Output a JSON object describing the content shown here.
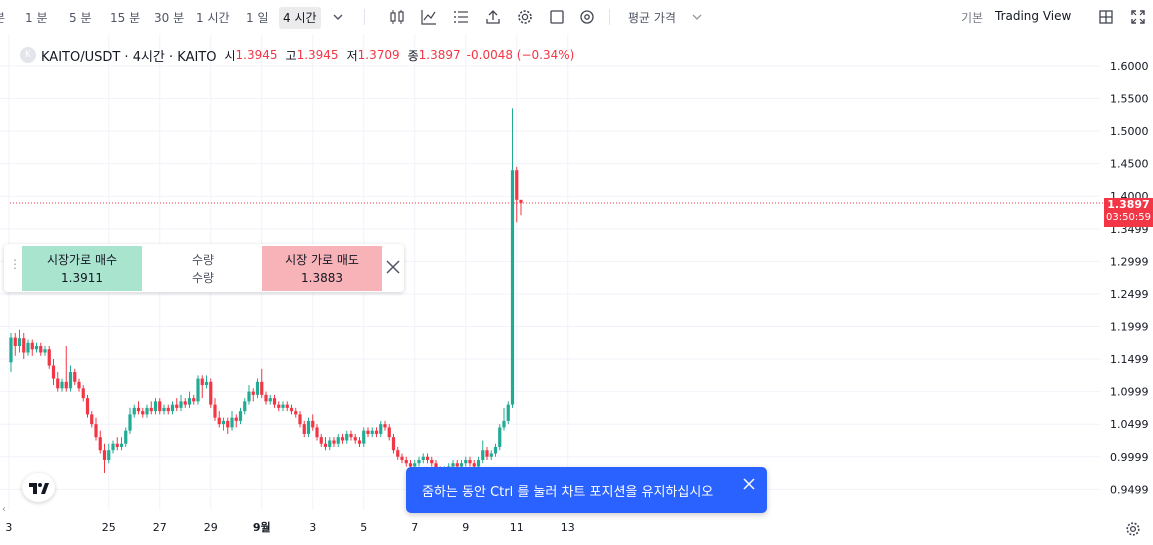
{
  "toolbar": {
    "timeframes": [
      "분",
      "1 분",
      "5 분",
      "15 분",
      "30 분",
      "1 시간",
      "1 일",
      "4 시간"
    ],
    "active_timeframe": "4 시간",
    "price_type": "평균 가격",
    "view_basic": "기본",
    "view_tradingview": "Trading View"
  },
  "legend": {
    "symbol": "KAITO/USDT · 4시간 · KAITO",
    "logo_letter": "K",
    "open_label": "시",
    "open": "1.3945",
    "high_label": "고",
    "high": "1.3945",
    "low_label": "저",
    "low": "1.3709",
    "close_label": "종",
    "close": "1.3897",
    "change": "-0.0048 (−0.34%)"
  },
  "trade_panel": {
    "buy_label": "시장가로 매수",
    "buy_price": "1.3911",
    "qty_label": "수량",
    "qty_value": "수량",
    "sell_label": "시장 가로 매도",
    "sell_price": "1.3883"
  },
  "current_price": {
    "value": "1.3897",
    "countdown": "03:50:59"
  },
  "toast": {
    "message": "줌하는 동안 Ctrl 를 눌러 차트 포지션을 유지하십시오"
  },
  "colors": {
    "up": "#22ab94",
    "down": "#f23645",
    "grid": "#f0f3fa",
    "accent": "#2962ff"
  },
  "chart_data": {
    "type": "candlestick",
    "y_ticks": [
      "1.6000",
      "1.5500",
      "1.5000",
      "1.4500",
      "1.4000",
      "1.3499",
      "1.2999",
      "1.2499",
      "1.1999",
      "1.1499",
      "1.0999",
      "1.0499",
      "0.9999",
      "0.9499"
    ],
    "y_tick_values": [
      1.6,
      1.55,
      1.5,
      1.45,
      1.4,
      1.3499,
      1.2999,
      1.2499,
      1.1999,
      1.1499,
      1.0999,
      1.0499,
      0.9999,
      0.9499
    ],
    "x_ticks": [
      "3",
      "25",
      "27",
      "29",
      "9월",
      "3",
      "5",
      "7",
      "9",
      "11",
      "13"
    ],
    "x_tick_index": [
      -0.5,
      23,
      35,
      47,
      59,
      71,
      83,
      95,
      107,
      119,
      131
    ],
    "ylim": [
      0.925,
      1.615
    ],
    "candles": [
      [
        1.145,
        1.183,
        1.19,
        1.13
      ],
      [
        1.183,
        1.17,
        1.19,
        1.155
      ],
      [
        1.17,
        1.182,
        1.195,
        1.16
      ],
      [
        1.182,
        1.16,
        1.19,
        1.15
      ],
      [
        1.16,
        1.175,
        1.18,
        1.155
      ],
      [
        1.175,
        1.165,
        1.18,
        1.155
      ],
      [
        1.165,
        1.17,
        1.175,
        1.16
      ],
      [
        1.17,
        1.16,
        1.175,
        1.155
      ],
      [
        1.16,
        1.165,
        1.17,
        1.155
      ],
      [
        1.165,
        1.14,
        1.17,
        1.135
      ],
      [
        1.14,
        1.12,
        1.15,
        1.11
      ],
      [
        1.12,
        1.105,
        1.13,
        1.1
      ],
      [
        1.105,
        1.115,
        1.12,
        1.1
      ],
      [
        1.115,
        1.105,
        1.17,
        1.1
      ],
      [
        1.105,
        1.13,
        1.14,
        1.1
      ],
      [
        1.13,
        1.115,
        1.135,
        1.11
      ],
      [
        1.115,
        1.105,
        1.12,
        1.1
      ],
      [
        1.105,
        1.09,
        1.11,
        1.085
      ],
      [
        1.09,
        1.065,
        1.095,
        1.06
      ],
      [
        1.065,
        1.05,
        1.07,
        1.045
      ],
      [
        1.05,
        1.03,
        1.06,
        1.025
      ],
      [
        1.03,
        1.01,
        1.04,
        1.005
      ],
      [
        1.01,
        0.995,
        1.02,
        0.975
      ],
      [
        0.995,
        1.01,
        1.02,
        0.99
      ],
      [
        1.01,
        1.02,
        1.025,
        1.005
      ],
      [
        1.02,
        1.015,
        1.03,
        1.01
      ],
      [
        1.015,
        1.02,
        1.03,
        1.01
      ],
      [
        1.02,
        1.04,
        1.045,
        1.015
      ],
      [
        1.04,
        1.065,
        1.075,
        1.035
      ],
      [
        1.065,
        1.075,
        1.08,
        1.06
      ],
      [
        1.075,
        1.07,
        1.085,
        1.065
      ],
      [
        1.07,
        1.065,
        1.075,
        1.06
      ],
      [
        1.065,
        1.075,
        1.08,
        1.06
      ],
      [
        1.075,
        1.07,
        1.085,
        1.065
      ],
      [
        1.07,
        1.085,
        1.09,
        1.065
      ],
      [
        1.085,
        1.07,
        1.09,
        1.065
      ],
      [
        1.07,
        1.075,
        1.08,
        1.065
      ],
      [
        1.075,
        1.07,
        1.08,
        1.065
      ],
      [
        1.07,
        1.08,
        1.085,
        1.065
      ],
      [
        1.08,
        1.075,
        1.09,
        1.07
      ],
      [
        1.075,
        1.085,
        1.095,
        1.07
      ],
      [
        1.085,
        1.08,
        1.09,
        1.075
      ],
      [
        1.08,
        1.09,
        1.1,
        1.075
      ],
      [
        1.09,
        1.085,
        1.095,
        1.08
      ],
      [
        1.085,
        1.12,
        1.125,
        1.08
      ],
      [
        1.12,
        1.11,
        1.125,
        1.09
      ],
      [
        1.11,
        1.115,
        1.125,
        1.105
      ],
      [
        1.115,
        1.08,
        1.12,
        1.075
      ],
      [
        1.08,
        1.06,
        1.09,
        1.055
      ],
      [
        1.06,
        1.05,
        1.07,
        1.045
      ],
      [
        1.05,
        1.055,
        1.06,
        1.04
      ],
      [
        1.055,
        1.045,
        1.06,
        1.035
      ],
      [
        1.045,
        1.06,
        1.07,
        1.04
      ],
      [
        1.06,
        1.055,
        1.065,
        1.045
      ],
      [
        1.055,
        1.07,
        1.075,
        1.05
      ],
      [
        1.07,
        1.085,
        1.09,
        1.065
      ],
      [
        1.085,
        1.1,
        1.11,
        1.08
      ],
      [
        1.1,
        1.095,
        1.105,
        1.085
      ],
      [
        1.095,
        1.115,
        1.12,
        1.09
      ],
      [
        1.115,
        1.095,
        1.135,
        1.09
      ],
      [
        1.095,
        1.085,
        1.1,
        1.08
      ],
      [
        1.085,
        1.09,
        1.095,
        1.08
      ],
      [
        1.09,
        1.08,
        1.095,
        1.075
      ],
      [
        1.08,
        1.075,
        1.085,
        1.07
      ],
      [
        1.075,
        1.08,
        1.085,
        1.07
      ],
      [
        1.08,
        1.075,
        1.085,
        1.07
      ],
      [
        1.075,
        1.07,
        1.08,
        1.065
      ],
      [
        1.07,
        1.065,
        1.075,
        1.06
      ],
      [
        1.065,
        1.05,
        1.07,
        1.045
      ],
      [
        1.05,
        1.035,
        1.055,
        1.03
      ],
      [
        1.035,
        1.055,
        1.06,
        1.03
      ],
      [
        1.055,
        1.045,
        1.065,
        1.04
      ],
      [
        1.045,
        1.03,
        1.05,
        1.025
      ],
      [
        1.03,
        1.02,
        1.035,
        1.015
      ],
      [
        1.02,
        1.015,
        1.03,
        1.01
      ],
      [
        1.015,
        1.025,
        1.03,
        1.01
      ],
      [
        1.025,
        1.02,
        1.03,
        1.015
      ],
      [
        1.02,
        1.03,
        1.035,
        1.015
      ],
      [
        1.03,
        1.025,
        1.035,
        1.02
      ],
      [
        1.025,
        1.035,
        1.04,
        1.02
      ],
      [
        1.035,
        1.03,
        1.04,
        1.025
      ],
      [
        1.03,
        1.025,
        1.035,
        1.02
      ],
      [
        1.025,
        1.02,
        1.03,
        1.015
      ],
      [
        1.02,
        1.04,
        1.045,
        1.015
      ],
      [
        1.04,
        1.035,
        1.045,
        1.03
      ],
      [
        1.035,
        1.04,
        1.045,
        1.03
      ],
      [
        1.04,
        1.035,
        1.045,
        1.03
      ],
      [
        1.035,
        1.05,
        1.055,
        1.03
      ],
      [
        1.05,
        1.045,
        1.055,
        1.04
      ],
      [
        1.045,
        1.03,
        1.05,
        1.025
      ],
      [
        1.03,
        1.01,
        1.035,
        1.005
      ],
      [
        1.01,
        1.0,
        1.015,
        0.995
      ],
      [
        1.0,
        0.995,
        1.005,
        0.99
      ],
      [
        0.995,
        0.99,
        1.0,
        0.985
      ],
      [
        0.99,
        0.985,
        0.995,
        0.98
      ],
      [
        0.985,
        0.99,
        0.995,
        0.98
      ],
      [
        0.99,
        0.995,
        1.0,
        0.985
      ],
      [
        0.995,
        1.0,
        1.005,
        0.99
      ],
      [
        1.0,
        0.995,
        1.005,
        0.99
      ],
      [
        0.995,
        0.99,
        1.0,
        0.985
      ],
      [
        0.99,
        0.98,
        0.995,
        0.975
      ],
      [
        0.98,
        0.975,
        0.985,
        0.97
      ],
      [
        0.975,
        0.98,
        0.985,
        0.97
      ],
      [
        0.98,
        0.985,
        0.99,
        0.975
      ],
      [
        0.985,
        0.99,
        0.995,
        0.98
      ],
      [
        0.99,
        0.985,
        0.995,
        0.98
      ],
      [
        0.985,
        0.99,
        0.995,
        0.98
      ],
      [
        0.99,
        0.995,
        1.0,
        0.985
      ],
      [
        0.995,
        0.99,
        1.0,
        0.985
      ],
      [
        0.99,
        0.985,
        0.995,
        0.98
      ],
      [
        0.985,
        0.995,
        1.0,
        0.98
      ],
      [
        0.995,
        1.01,
        1.025,
        0.99
      ],
      [
        1.01,
        1.0,
        1.015,
        0.995
      ],
      [
        1.0,
        1.005,
        1.01,
        0.995
      ],
      [
        1.005,
        1.015,
        1.02,
        1.0
      ],
      [
        1.015,
        1.045,
        1.05,
        1.01
      ],
      [
        1.045,
        1.055,
        1.075,
        1.04
      ],
      [
        1.055,
        1.08,
        1.085,
        1.05
      ],
      [
        1.08,
        1.44,
        1.535,
        1.075
      ],
      [
        1.44,
        1.3945,
        1.445,
        1.36
      ],
      [
        1.3945,
        1.3897,
        1.3945,
        1.3709
      ]
    ]
  }
}
